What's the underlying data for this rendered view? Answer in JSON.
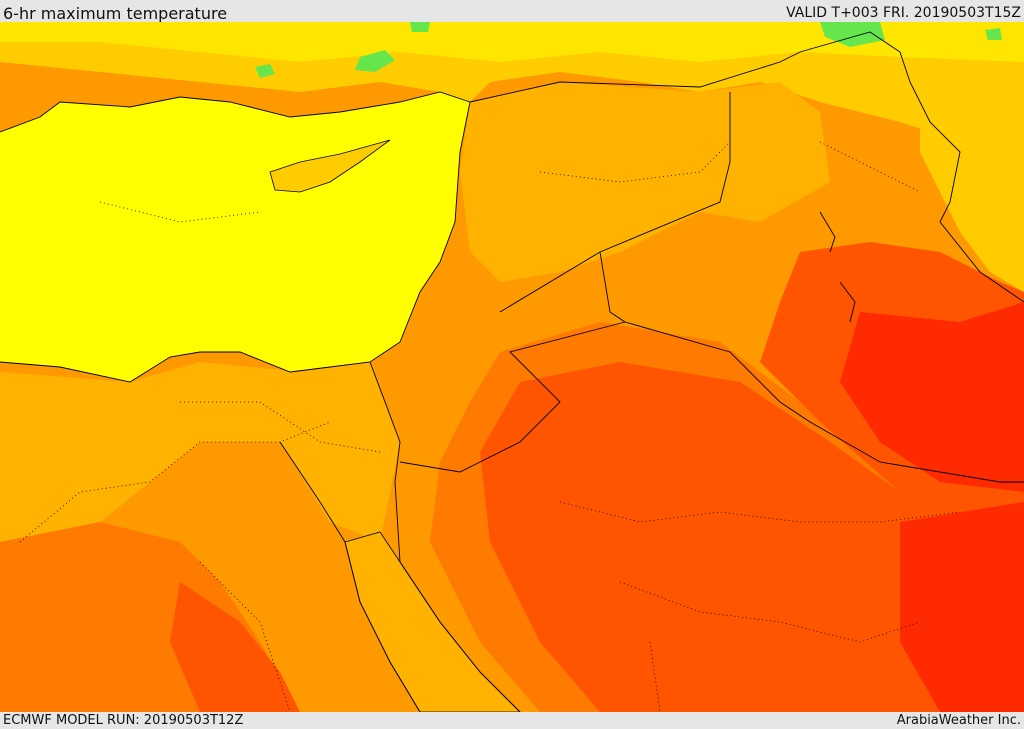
{
  "header": {
    "title": "6-hr maximum temperature",
    "valid": "VALID T+003 FRI. 20190503T15Z"
  },
  "footer": {
    "model_run": "ECMWF MODEL RUN: 20190503T12Z",
    "credit": "ArabiaWeather Inc."
  },
  "map": {
    "region": "Eastern Mediterranean and Middle East",
    "colors": {
      "sea": "#ffff00",
      "cool_green": "#66e64d",
      "light_yellow": "#ffe600",
      "warm_yellow": "#ffcc00",
      "light_orange": "#ffb300",
      "orange": "#ff9900",
      "dark_orange": "#ff7a00",
      "red_orange": "#ff5500",
      "red": "#ff2a00",
      "borders": "#000000"
    }
  }
}
